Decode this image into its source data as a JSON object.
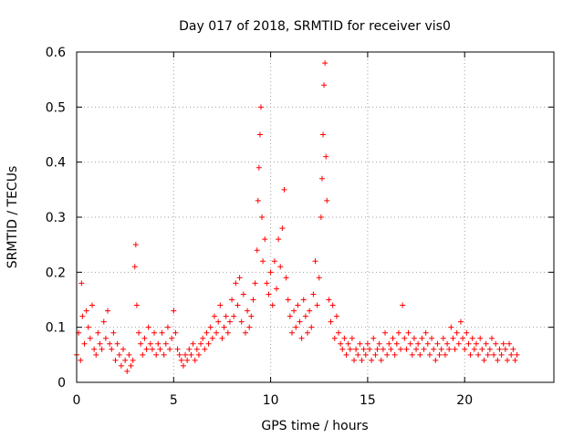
{
  "chart_data": {
    "type": "scatter",
    "title": "Day 017 of 2018, SRMTID for receiver vis0",
    "xlabel": "GPS time / hours",
    "ylabel": "SRMTID / TECUs",
    "xlim": [
      0,
      24.6
    ],
    "ylim": [
      0,
      0.6
    ],
    "x_ticks": [
      "0",
      "5",
      "10",
      "15",
      "20"
    ],
    "y_ticks": [
      "0",
      "0.1",
      "0.2",
      "0.3",
      "0.4",
      "0.5",
      "0.6"
    ],
    "grid": true,
    "marker": "plus",
    "color": "#ff0000",
    "series": [
      {
        "name": "vis0",
        "points": [
          [
            0.0,
            0.05
          ],
          [
            0.1,
            0.09
          ],
          [
            0.2,
            0.04
          ],
          [
            0.25,
            0.18
          ],
          [
            0.3,
            0.12
          ],
          [
            0.4,
            0.07
          ],
          [
            0.5,
            0.13
          ],
          [
            0.6,
            0.1
          ],
          [
            0.7,
            0.08
          ],
          [
            0.8,
            0.14
          ],
          [
            0.9,
            0.06
          ],
          [
            1.0,
            0.05
          ],
          [
            1.1,
            0.09
          ],
          [
            1.2,
            0.07
          ],
          [
            1.3,
            0.06
          ],
          [
            1.4,
            0.11
          ],
          [
            1.5,
            0.08
          ],
          [
            1.6,
            0.13
          ],
          [
            1.7,
            0.07
          ],
          [
            1.8,
            0.06
          ],
          [
            1.9,
            0.09
          ],
          [
            2.0,
            0.04
          ],
          [
            2.1,
            0.07
          ],
          [
            2.2,
            0.05
          ],
          [
            2.3,
            0.03
          ],
          [
            2.4,
            0.06
          ],
          [
            2.5,
            0.04
          ],
          [
            2.6,
            0.02
          ],
          [
            2.7,
            0.05
          ],
          [
            2.8,
            0.03
          ],
          [
            2.9,
            0.04
          ],
          [
            3.0,
            0.21
          ],
          [
            3.05,
            0.25
          ],
          [
            3.1,
            0.14
          ],
          [
            3.2,
            0.09
          ],
          [
            3.3,
            0.07
          ],
          [
            3.4,
            0.05
          ],
          [
            3.5,
            0.08
          ],
          [
            3.6,
            0.06
          ],
          [
            3.7,
            0.1
          ],
          [
            3.8,
            0.07
          ],
          [
            3.9,
            0.06
          ],
          [
            4.0,
            0.09
          ],
          [
            4.1,
            0.05
          ],
          [
            4.2,
            0.07
          ],
          [
            4.3,
            0.06
          ],
          [
            4.4,
            0.09
          ],
          [
            4.5,
            0.05
          ],
          [
            4.6,
            0.07
          ],
          [
            4.7,
            0.1
          ],
          [
            4.8,
            0.06
          ],
          [
            4.9,
            0.08
          ],
          [
            5.0,
            0.13
          ],
          [
            5.1,
            0.09
          ],
          [
            5.2,
            0.06
          ],
          [
            5.3,
            0.05
          ],
          [
            5.4,
            0.04
          ],
          [
            5.5,
            0.03
          ],
          [
            5.6,
            0.05
          ],
          [
            5.7,
            0.04
          ],
          [
            5.8,
            0.06
          ],
          [
            5.9,
            0.05
          ],
          [
            6.0,
            0.07
          ],
          [
            6.1,
            0.04
          ],
          [
            6.2,
            0.06
          ],
          [
            6.3,
            0.05
          ],
          [
            6.4,
            0.07
          ],
          [
            6.5,
            0.08
          ],
          [
            6.6,
            0.06
          ],
          [
            6.7,
            0.09
          ],
          [
            6.8,
            0.07
          ],
          [
            6.9,
            0.1
          ],
          [
            7.0,
            0.08
          ],
          [
            7.1,
            0.12
          ],
          [
            7.2,
            0.09
          ],
          [
            7.3,
            0.11
          ],
          [
            7.4,
            0.14
          ],
          [
            7.5,
            0.08
          ],
          [
            7.6,
            0.1
          ],
          [
            7.7,
            0.12
          ],
          [
            7.8,
            0.09
          ],
          [
            7.9,
            0.11
          ],
          [
            8.0,
            0.15
          ],
          [
            8.1,
            0.12
          ],
          [
            8.2,
            0.18
          ],
          [
            8.3,
            0.14
          ],
          [
            8.4,
            0.19
          ],
          [
            8.5,
            0.11
          ],
          [
            8.6,
            0.16
          ],
          [
            8.7,
            0.09
          ],
          [
            8.8,
            0.13
          ],
          [
            8.9,
            0.1
          ],
          [
            9.0,
            0.12
          ],
          [
            9.1,
            0.15
          ],
          [
            9.2,
            0.18
          ],
          [
            9.3,
            0.24
          ],
          [
            9.35,
            0.33
          ],
          [
            9.4,
            0.39
          ],
          [
            9.45,
            0.45
          ],
          [
            9.5,
            0.5
          ],
          [
            9.55,
            0.3
          ],
          [
            9.6,
            0.22
          ],
          [
            9.7,
            0.26
          ],
          [
            9.8,
            0.18
          ],
          [
            9.9,
            0.16
          ],
          [
            10.0,
            0.2
          ],
          [
            10.1,
            0.14
          ],
          [
            10.2,
            0.22
          ],
          [
            10.3,
            0.17
          ],
          [
            10.4,
            0.26
          ],
          [
            10.5,
            0.21
          ],
          [
            10.6,
            0.28
          ],
          [
            10.7,
            0.35
          ],
          [
            10.8,
            0.19
          ],
          [
            10.9,
            0.15
          ],
          [
            11.0,
            0.12
          ],
          [
            11.1,
            0.09
          ],
          [
            11.2,
            0.13
          ],
          [
            11.3,
            0.1
          ],
          [
            11.4,
            0.14
          ],
          [
            11.5,
            0.11
          ],
          [
            11.6,
            0.08
          ],
          [
            11.7,
            0.15
          ],
          [
            11.8,
            0.12
          ],
          [
            11.9,
            0.09
          ],
          [
            12.0,
            0.13
          ],
          [
            12.1,
            0.1
          ],
          [
            12.2,
            0.16
          ],
          [
            12.3,
            0.22
          ],
          [
            12.4,
            0.14
          ],
          [
            12.5,
            0.19
          ],
          [
            12.6,
            0.3
          ],
          [
            12.65,
            0.37
          ],
          [
            12.7,
            0.45
          ],
          [
            12.75,
            0.54
          ],
          [
            12.8,
            0.58
          ],
          [
            12.85,
            0.41
          ],
          [
            12.9,
            0.33
          ],
          [
            13.0,
            0.15
          ],
          [
            13.1,
            0.11
          ],
          [
            13.2,
            0.14
          ],
          [
            13.3,
            0.08
          ],
          [
            13.4,
            0.12
          ],
          [
            13.5,
            0.09
          ],
          [
            13.6,
            0.07
          ],
          [
            13.7,
            0.06
          ],
          [
            13.8,
            0.08
          ],
          [
            13.9,
            0.05
          ],
          [
            14.0,
            0.07
          ],
          [
            14.1,
            0.06
          ],
          [
            14.2,
            0.08
          ],
          [
            14.3,
            0.04
          ],
          [
            14.4,
            0.06
          ],
          [
            14.5,
            0.05
          ],
          [
            14.6,
            0.07
          ],
          [
            14.7,
            0.04
          ],
          [
            14.8,
            0.06
          ],
          [
            14.9,
            0.05
          ],
          [
            15.0,
            0.07
          ],
          [
            15.1,
            0.06
          ],
          [
            15.2,
            0.04
          ],
          [
            15.3,
            0.08
          ],
          [
            15.4,
            0.05
          ],
          [
            15.5,
            0.06
          ],
          [
            15.6,
            0.07
          ],
          [
            15.7,
            0.04
          ],
          [
            15.8,
            0.06
          ],
          [
            15.9,
            0.09
          ],
          [
            16.0,
            0.05
          ],
          [
            16.1,
            0.07
          ],
          [
            16.2,
            0.06
          ],
          [
            16.3,
            0.08
          ],
          [
            16.4,
            0.05
          ],
          [
            16.5,
            0.07
          ],
          [
            16.6,
            0.09
          ],
          [
            16.7,
            0.06
          ],
          [
            16.8,
            0.14
          ],
          [
            16.9,
            0.08
          ],
          [
            17.0,
            0.06
          ],
          [
            17.1,
            0.09
          ],
          [
            17.2,
            0.07
          ],
          [
            17.3,
            0.05
          ],
          [
            17.4,
            0.08
          ],
          [
            17.5,
            0.06
          ],
          [
            17.6,
            0.07
          ],
          [
            17.7,
            0.05
          ],
          [
            17.8,
            0.08
          ],
          [
            17.9,
            0.06
          ],
          [
            18.0,
            0.09
          ],
          [
            18.1,
            0.07
          ],
          [
            18.2,
            0.05
          ],
          [
            18.3,
            0.08
          ],
          [
            18.4,
            0.06
          ],
          [
            18.5,
            0.04
          ],
          [
            18.6,
            0.07
          ],
          [
            18.7,
            0.05
          ],
          [
            18.8,
            0.06
          ],
          [
            18.9,
            0.08
          ],
          [
            19.0,
            0.05
          ],
          [
            19.1,
            0.07
          ],
          [
            19.2,
            0.06
          ],
          [
            19.3,
            0.1
          ],
          [
            19.4,
            0.08
          ],
          [
            19.5,
            0.06
          ],
          [
            19.6,
            0.09
          ],
          [
            19.7,
            0.07
          ],
          [
            19.8,
            0.11
          ],
          [
            19.9,
            0.08
          ],
          [
            20.0,
            0.06
          ],
          [
            20.1,
            0.09
          ],
          [
            20.2,
            0.07
          ],
          [
            20.3,
            0.05
          ],
          [
            20.4,
            0.08
          ],
          [
            20.5,
            0.06
          ],
          [
            20.6,
            0.07
          ],
          [
            20.7,
            0.05
          ],
          [
            20.8,
            0.08
          ],
          [
            20.9,
            0.06
          ],
          [
            21.0,
            0.04
          ],
          [
            21.1,
            0.07
          ],
          [
            21.2,
            0.05
          ],
          [
            21.3,
            0.06
          ],
          [
            21.4,
            0.08
          ],
          [
            21.5,
            0.05
          ],
          [
            21.6,
            0.07
          ],
          [
            21.7,
            0.04
          ],
          [
            21.8,
            0.06
          ],
          [
            21.9,
            0.05
          ],
          [
            22.0,
            0.07
          ],
          [
            22.1,
            0.06
          ],
          [
            22.2,
            0.04
          ],
          [
            22.3,
            0.07
          ],
          [
            22.4,
            0.05
          ],
          [
            22.5,
            0.06
          ],
          [
            22.6,
            0.04
          ],
          [
            22.7,
            0.05
          ]
        ]
      }
    ]
  }
}
